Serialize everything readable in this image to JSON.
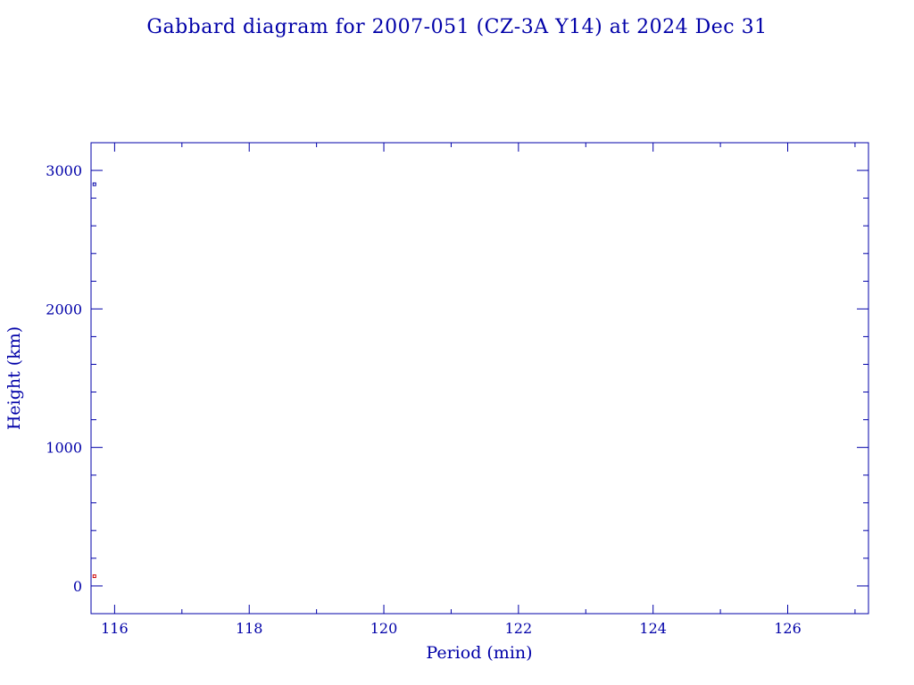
{
  "chart_data": {
    "type": "scatter",
    "title": "Gabbard diagram for 2007-051 (CZ-3A Y14) at 2024 Dec 31",
    "xlabel": "Period (min)",
    "ylabel": "Height (km)",
    "xlim": [
      115.65,
      127.2
    ],
    "ylim": [
      -200,
      3200
    ],
    "x_ticks": [
      116,
      118,
      120,
      122,
      124,
      126
    ],
    "x_tick_labels": [
      "116",
      "118",
      "120",
      "122",
      "124",
      "126"
    ],
    "y_ticks": [
      0,
      1000,
      2000,
      3000
    ],
    "y_tick_labels": [
      "0",
      "1000",
      "2000",
      "3000"
    ],
    "x_minor_step": 1,
    "y_minor_step": 200,
    "grid": false,
    "series": [
      {
        "marker": "apogee",
        "color": "#0000a8",
        "points": [
          {
            "x": 115.7,
            "y": 2900
          }
        ]
      },
      {
        "marker": "perigee",
        "color": "#cc0000",
        "points": [
          {
            "x": 115.7,
            "y": 70
          }
        ]
      }
    ],
    "colors": {
      "axis": "#0000a8",
      "apogee": "#0000a8",
      "perigee": "#cc0000"
    }
  }
}
